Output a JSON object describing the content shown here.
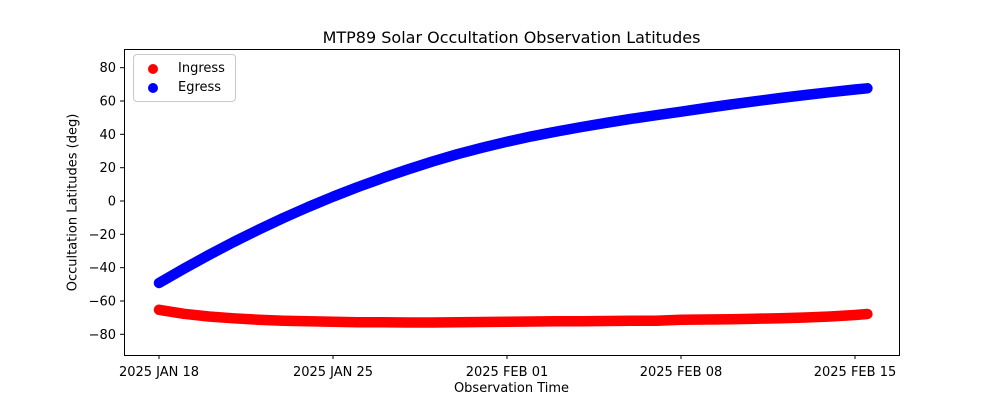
{
  "chart_data": {
    "type": "scatter",
    "title": "MTP89 Solar Occultation Observation Latitudes",
    "xlabel": "Observation Time",
    "ylabel": "Occultation Latitudes (deg)",
    "grid": false,
    "legend_position": "upper left",
    "marker": "circle",
    "marker_size_px": 10.5,
    "xlim": [
      -1.41,
      29.77
    ],
    "ylim": [
      -92.4,
      91.2
    ],
    "x_ticks": [
      0,
      7,
      14,
      21,
      28
    ],
    "x_tick_labels": [
      "2025 JAN 18",
      "2025 JAN 25",
      "2025 FEB 01",
      "2025 FEB 08",
      "2025 FEB 15"
    ],
    "y_ticks": [
      -80,
      -60,
      -40,
      -20,
      0,
      20,
      40,
      60,
      80
    ],
    "y_tick_labels": [
      "−80",
      "−60",
      "−40",
      "−20",
      "0",
      "20",
      "40",
      "60",
      "80"
    ],
    "x_days_after_first_tick": [
      0,
      1,
      2,
      3,
      4,
      5,
      6,
      7,
      8,
      9,
      10,
      11,
      12,
      13,
      14,
      15,
      16,
      17,
      18,
      19,
      20,
      21,
      22,
      23,
      24,
      25,
      26,
      27,
      28,
      28.5
    ],
    "series": [
      {
        "name": "Ingress",
        "color": "#ff0000",
        "values": [
          -65.3,
          -67.7,
          -69.3,
          -70.4,
          -71.2,
          -71.8,
          -72.2,
          -72.5,
          -72.7,
          -72.8,
          -72.9,
          -72.9,
          -72.8,
          -72.6,
          -72.4,
          -72.3,
          -72.2,
          -72.1,
          -72.0,
          -71.9,
          -71.8,
          -71.3,
          -71.1,
          -70.9,
          -70.6,
          -70.3,
          -69.9,
          -69.3,
          -68.4,
          -67.8
        ]
      },
      {
        "name": "Egress",
        "color": "#0000ff",
        "values": [
          -49.2,
          -40.6,
          -32.4,
          -24.6,
          -17.2,
          -10.2,
          -3.6,
          2.6,
          8.4,
          13.8,
          18.9,
          23.7,
          28.1,
          32.0,
          35.6,
          38.8,
          41.7,
          44.4,
          46.9,
          49.3,
          51.5,
          53.6,
          55.8,
          57.9,
          59.9,
          61.8,
          63.6,
          65.3,
          66.9,
          67.6
        ]
      }
    ]
  }
}
